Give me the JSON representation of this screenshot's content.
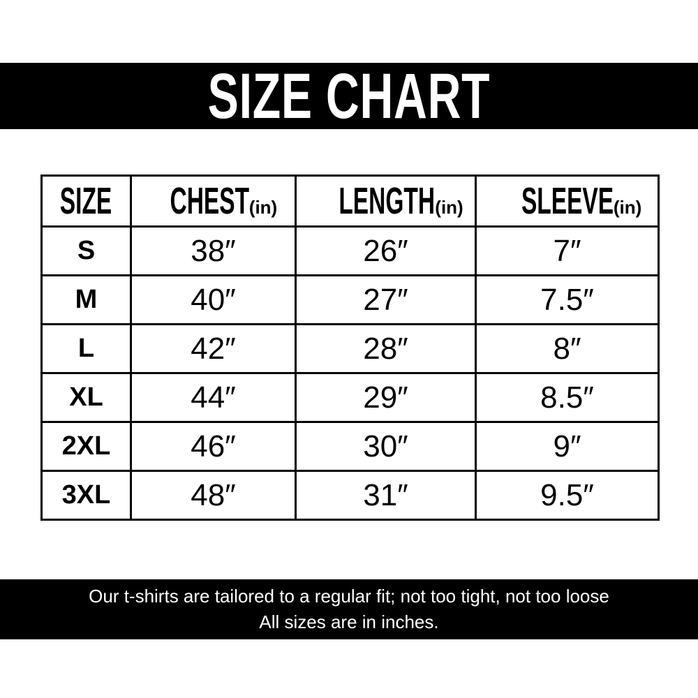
{
  "title": "SIZE CHART",
  "table": {
    "headers": [
      {
        "label": "SIZE",
        "unit": ""
      },
      {
        "label": "CHEST",
        "unit": "(in)"
      },
      {
        "label": "LENGTH",
        "unit": "(in)"
      },
      {
        "label": "SLEEVE",
        "unit": "(in)"
      }
    ],
    "rows": [
      [
        "S",
        "38″",
        "26″",
        "7″"
      ],
      [
        "M",
        "40″",
        "27″",
        "7.5″"
      ],
      [
        "L",
        "42″",
        "28″",
        "8″"
      ],
      [
        "XL",
        "44″",
        "29″",
        "8.5″"
      ],
      [
        "2XL",
        "46″",
        "30″",
        "9″"
      ],
      [
        "3XL",
        "48″",
        "31″",
        "9.5″"
      ]
    ]
  },
  "footer": {
    "line1": "Our t-shirts are tailored to a regular fit; not too tight, not too loose",
    "line2": "All sizes are in inches."
  }
}
